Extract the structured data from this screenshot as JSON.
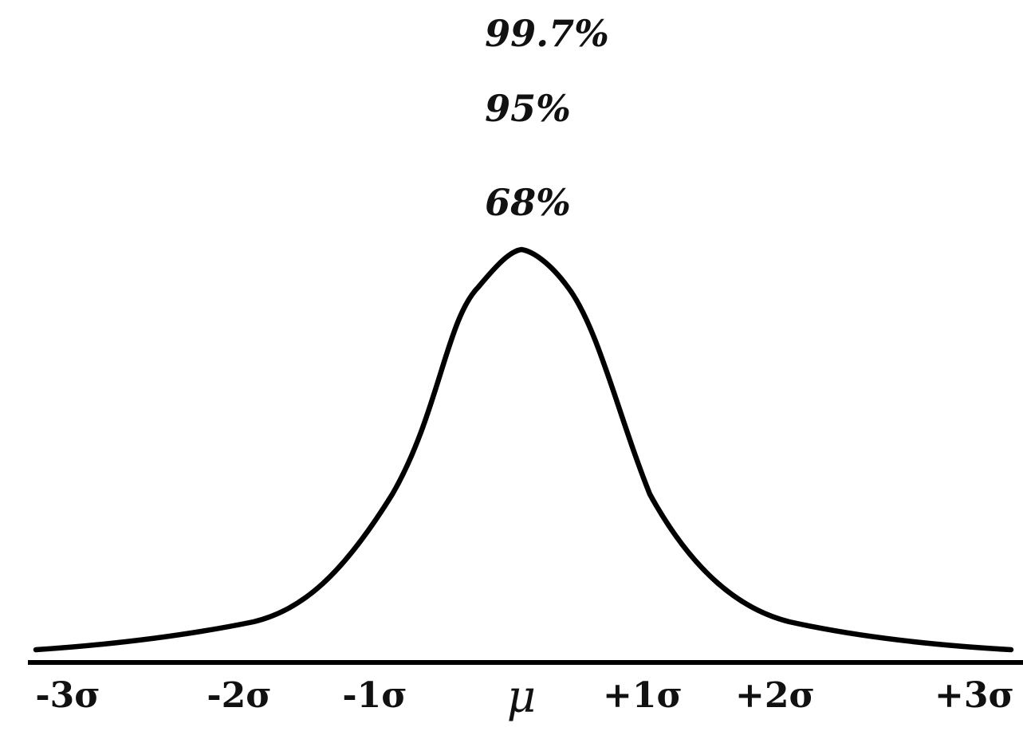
{
  "colors": {
    "sigma3": "#e2614c",
    "sigma2": "#e98d72",
    "sigma1": "#6d9ee6",
    "bar": "#4a4a4a",
    "curve": "#000000",
    "axis": "#000000"
  },
  "brackets": {
    "pct_99_7": "99.7%",
    "pct_95": "95%",
    "pct_68": "68%"
  },
  "axis_labels": {
    "minus3": "-3σ",
    "minus2": "-2σ",
    "minus1": "-1σ",
    "mu": "μ",
    "plus1": "+1σ",
    "plus2": "+2σ",
    "plus3": "+3σ"
  }
}
